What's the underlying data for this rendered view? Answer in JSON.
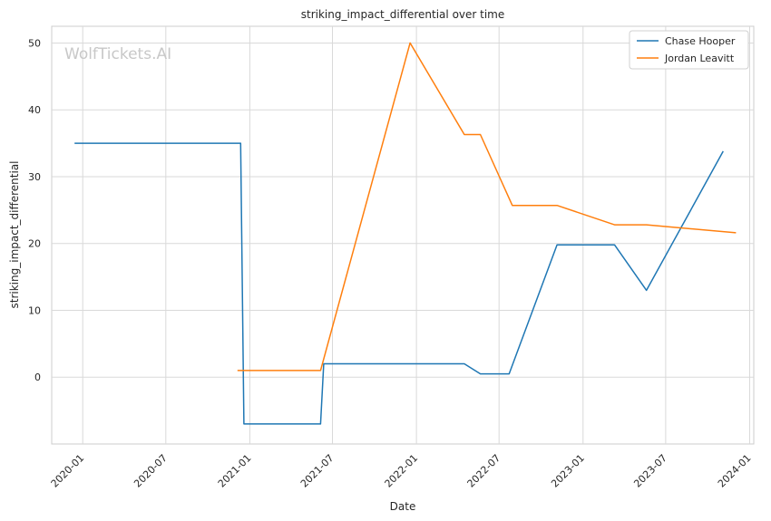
{
  "chart_data": {
    "type": "line",
    "title": "striking_impact_differential over time",
    "xlabel": "Date",
    "ylabel": "striking_impact_differential",
    "watermark": "WolfTickets.AI",
    "x_ticks": [
      "2020-01",
      "2020-07",
      "2021-01",
      "2021-07",
      "2022-01",
      "2022-07",
      "2023-01",
      "2023-07",
      "2024-01"
    ],
    "y_ticks": [
      0,
      10,
      20,
      30,
      40,
      50
    ],
    "xlim": [
      "2019-10-25",
      "2024-01-10"
    ],
    "ylim": [
      -10,
      52.5
    ],
    "grid": true,
    "legend_position": "top-right",
    "series": [
      {
        "name": "Chase Hooper",
        "color": "#1f77b4",
        "points": [
          [
            "2019-12-14",
            35
          ],
          [
            "2020-12-12",
            35
          ],
          [
            "2020-12-19",
            -7
          ],
          [
            "2021-06-05",
            -7
          ],
          [
            "2021-06-12",
            2
          ],
          [
            "2022-04-16",
            2
          ],
          [
            "2022-05-21",
            0.5
          ],
          [
            "2022-07-23",
            0.5
          ],
          [
            "2022-11-05",
            19.8
          ],
          [
            "2023-03-11",
            19.8
          ],
          [
            "2023-05-20",
            13
          ],
          [
            "2023-11-04",
            33.8
          ]
        ]
      },
      {
        "name": "Jordan Leavitt",
        "color": "#ff7f0e",
        "points": [
          [
            "2020-12-05",
            1
          ],
          [
            "2021-06-05",
            1
          ],
          [
            "2021-12-18",
            50
          ],
          [
            "2022-04-16",
            36.3
          ],
          [
            "2022-05-21",
            36.3
          ],
          [
            "2022-07-30",
            25.7
          ],
          [
            "2022-11-05",
            25.7
          ],
          [
            "2023-03-11",
            22.8
          ],
          [
            "2023-05-20",
            22.8
          ],
          [
            "2023-12-02",
            21.6
          ]
        ]
      }
    ]
  }
}
